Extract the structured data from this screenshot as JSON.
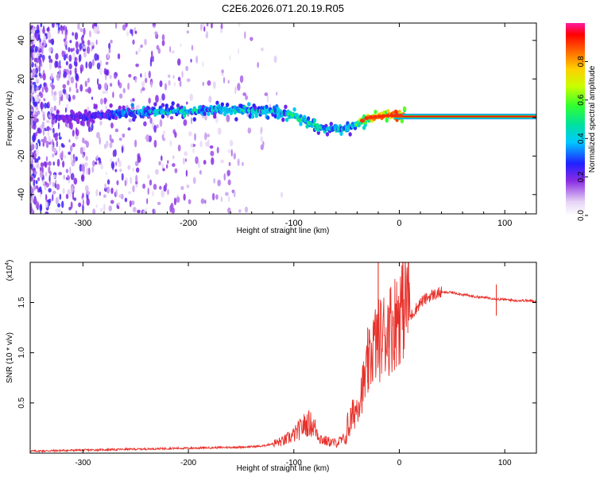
{
  "title": "C2E6.2026.071.20.19.R05",
  "chart_data": [
    {
      "type": "heatmap",
      "name": "spectrogram",
      "xlabel": "Height of straight line (km)",
      "ylabel": "Frequency (Hz)",
      "xlim": [
        -350,
        130
      ],
      "ylim": [
        -50,
        49
      ],
      "xticks": [
        -300,
        -200,
        -100,
        0,
        100
      ],
      "yticks": [
        -40,
        -20,
        0,
        20,
        40
      ],
      "colorbar": {
        "label": "Normalized spectral amplitude",
        "range": [
          0.0,
          1.0
        ],
        "ticks": [
          0.0,
          0.2,
          0.4,
          0.6,
          0.8
        ],
        "tick_labels": [
          "0.0",
          "0.2",
          "0.4",
          "0.6",
          "0.8"
        ]
      },
      "ridge": {
        "x": [
          -320,
          -280,
          -250,
          -200,
          -180,
          -150,
          -120,
          -100,
          -85,
          -70,
          -55,
          -45,
          -30,
          -10,
          0,
          50,
          130
        ],
        "freq": [
          0,
          1,
          3,
          3,
          4,
          4,
          3,
          1,
          -3,
          -6,
          -6,
          -5,
          0,
          1,
          1,
          0.5,
          0.5
        ],
        "amplitude": [
          0.25,
          0.3,
          0.45,
          0.5,
          0.45,
          0.5,
          0.5,
          0.55,
          0.5,
          0.5,
          0.45,
          0.5,
          0.8,
          0.9,
          0.95,
          0.95,
          0.95
        ]
      }
    },
    {
      "type": "line",
      "name": "snr",
      "xlabel": "Height of straight line (km)",
      "ylabel": "SNR (10 * v/v)",
      "y_multiplier": "(x10",
      "y_multiplier_exp": "4",
      "y_multiplier_close": ")",
      "xlim": [
        -350,
        130
      ],
      "ylim": [
        0,
        1.9
      ],
      "xticks": [
        -300,
        -200,
        -100,
        0,
        100
      ],
      "yticks": [
        0.5,
        1.0,
        1.5
      ],
      "ytick_labels": [
        "0.5",
        "1.0",
        "1.5"
      ],
      "color": "#e8302a",
      "series": [
        {
          "name": "SNR",
          "x": [
            -350,
            -300,
            -250,
            -200,
            -150,
            -130,
            -110,
            -100,
            -90,
            -85,
            -80,
            -75,
            -70,
            -60,
            -50,
            -40,
            -30,
            -25,
            -20,
            -15,
            -10,
            -5,
            0,
            10,
            20,
            30,
            40,
            50,
            60,
            70,
            80,
            90,
            95,
            100,
            110,
            120,
            130
          ],
          "y": [
            0.02,
            0.03,
            0.04,
            0.05,
            0.06,
            0.07,
            0.12,
            0.18,
            0.28,
            0.3,
            0.25,
            0.15,
            0.12,
            0.1,
            0.15,
            0.4,
            0.7,
            0.9,
            0.95,
            1.0,
            1.05,
            1.1,
            1.2,
            1.35,
            1.5,
            1.57,
            1.6,
            1.6,
            1.58,
            1.56,
            1.55,
            1.54,
            1.53,
            1.53,
            1.52,
            1.52,
            1.51
          ],
          "spikes": [
            {
              "x": -20,
              "y": 1.9
            },
            {
              "x": -30,
              "y": 1.25
            },
            {
              "x": -10,
              "y": 1.45
            },
            {
              "x": 92,
              "y": 1.68
            },
            {
              "x": 92,
              "y": 1.37
            }
          ]
        }
      ]
    }
  ]
}
